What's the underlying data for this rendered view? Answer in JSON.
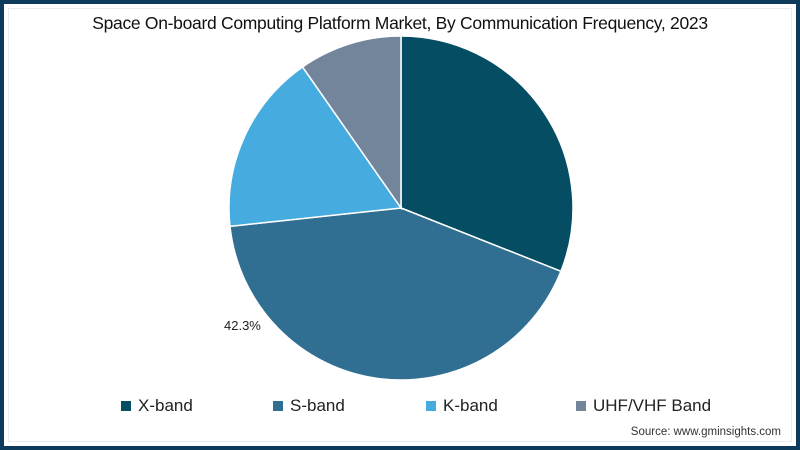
{
  "header": {
    "title": "Space On-board Computing Platform Market, By Communication Frequency, 2023"
  },
  "chart_data": {
    "type": "pie",
    "title": "Space On-board Computing Platform Market, By Communication Frequency, 2023",
    "categories": [
      "X-band",
      "S-band",
      "K-band",
      "UHF/VHF Band"
    ],
    "values": [
      31.0,
      42.3,
      17.0,
      9.7
    ],
    "unit": "%",
    "colors": [
      "#044d63",
      "#306f92",
      "#46abdf",
      "#73859a"
    ],
    "start_angle_deg": 0,
    "direction": "clockwise",
    "data_labels": [
      {
        "category": "S-band",
        "text": "42.3%"
      }
    ],
    "legend_position": "bottom"
  },
  "labels": {
    "s_band_pct": "42.3%"
  },
  "legend": {
    "items": [
      {
        "label": "X-band",
        "color": "#044d63"
      },
      {
        "label": "S-band",
        "color": "#306f92"
      },
      {
        "label": "K-band",
        "color": "#46abdf"
      },
      {
        "label": "UHF/VHF Band",
        "color": "#73859a"
      }
    ]
  },
  "footer": {
    "source": "Source: www.gminsights.com"
  },
  "theme": {
    "frame_color": "#0e3b5c"
  }
}
